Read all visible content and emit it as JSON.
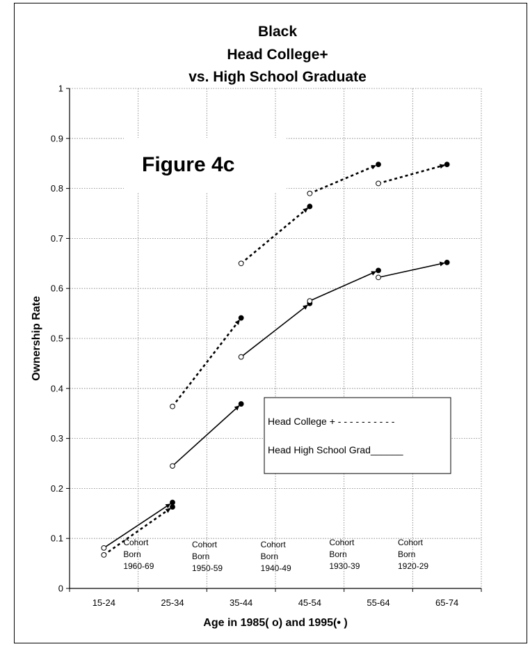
{
  "chart_data": {
    "type": "line",
    "title_lines": [
      "Black",
      "Head College+",
      "vs. High School Graduate"
    ],
    "figure_label": "Figure 4c",
    "xlabel": "Age in 1985( o)  and 1995(• )",
    "ylabel": "Ownership Rate",
    "categories": [
      "15-24",
      "25-34",
      "35-44",
      "45-54",
      "55-64",
      "65-74"
    ],
    "y_ticks": [
      "0",
      "0.1",
      "0.2",
      "0.3",
      "0.4",
      "0.5",
      "0.6",
      "0.7",
      "0.8",
      "0.9",
      "1"
    ],
    "ylim": [
      0,
      1
    ],
    "grid": true,
    "legend": {
      "placement": "center-right",
      "college": "Head College +   - - - - - - - - - -",
      "hs": "Head High School Grad______"
    },
    "cohorts": [
      {
        "lines": [
          "Cohort",
          "Born",
          "1960-69"
        ],
        "col": 0
      },
      {
        "lines": [
          "Cohort",
          "Born",
          "1950-59"
        ],
        "col": 1
      },
      {
        "lines": [
          "Cohort",
          "Born",
          "1940-49"
        ],
        "col": 2
      },
      {
        "lines": [
          "Cohort",
          "Born",
          "1930-39"
        ],
        "col": 3
      },
      {
        "lines": [
          "Cohort",
          "Born",
          "1920-29"
        ],
        "col": 4
      }
    ],
    "series": [
      {
        "group": "college",
        "style": "dashed",
        "segments": [
          {
            "from": {
              "x": "15-24",
              "y": 0.067
            },
            "to": {
              "x": "25-34",
              "y": 0.163
            }
          },
          {
            "from": {
              "x": "25-34",
              "y": 0.364
            },
            "to": {
              "x": "35-44",
              "y": 0.541
            }
          },
          {
            "from": {
              "x": "35-44",
              "y": 0.65
            },
            "to": {
              "x": "45-54",
              "y": 0.764
            }
          },
          {
            "from": {
              "x": "45-54",
              "y": 0.79
            },
            "to": {
              "x": "55-64",
              "y": 0.848
            }
          },
          {
            "from": {
              "x": "55-64",
              "y": 0.81
            },
            "to": {
              "x": "65-74",
              "y": 0.848
            }
          }
        ]
      },
      {
        "group": "hs",
        "style": "solid",
        "segments": [
          {
            "from": {
              "x": "15-24",
              "y": 0.081
            },
            "to": {
              "x": "25-34",
              "y": 0.172
            }
          },
          {
            "from": {
              "x": "25-34",
              "y": 0.245
            },
            "to": {
              "x": "35-44",
              "y": 0.369
            }
          },
          {
            "from": {
              "x": "35-44",
              "y": 0.463
            },
            "to": {
              "x": "45-54",
              "y": 0.57
            }
          },
          {
            "from": {
              "x": "45-54",
              "y": 0.575
            },
            "to": {
              "x": "55-64",
              "y": 0.636
            }
          },
          {
            "from": {
              "x": "55-64",
              "y": 0.622
            },
            "to": {
              "x": "65-74",
              "y": 0.652
            }
          }
        ]
      }
    ]
  }
}
